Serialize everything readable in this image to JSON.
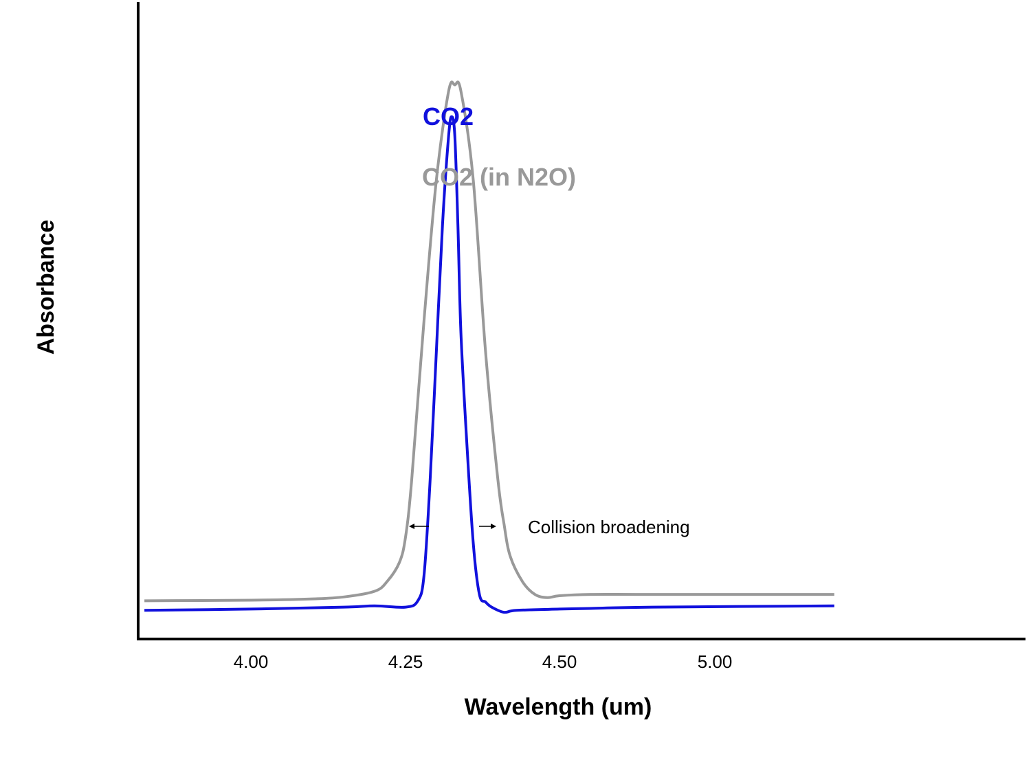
{
  "chart_data": {
    "type": "line",
    "title": "",
    "xlabel": "Wavelength (um)",
    "ylabel": "Absorbance",
    "xlim": [
      3.82,
      5.26
    ],
    "ylim": [
      0,
      1.0
    ],
    "x_ticks": [
      "4.00",
      "4.25",
      "4.50",
      "5.00"
    ],
    "grid": false,
    "legend_position": "top-center",
    "annotation": "Collision broadening",
    "series": [
      {
        "name": "CO2",
        "color": "#1111dd",
        "x": [
          3.83,
          4.0,
          4.15,
          4.2,
          4.25,
          4.27,
          4.28,
          4.29,
          4.3,
          4.31,
          4.32,
          4.325,
          4.33,
          4.335,
          4.34,
          4.35,
          4.36,
          4.37,
          4.38,
          4.39,
          4.41,
          4.43,
          4.5,
          4.6,
          4.8,
          5.1
        ],
        "y": [
          0.045,
          0.047,
          0.05,
          0.052,
          0.05,
          0.06,
          0.1,
          0.25,
          0.45,
          0.65,
          0.79,
          0.82,
          0.79,
          0.65,
          0.48,
          0.3,
          0.15,
          0.07,
          0.058,
          0.05,
          0.042,
          0.045,
          0.047,
          0.048,
          0.05,
          0.052
        ]
      },
      {
        "name": "CO2 (in N2O)",
        "color": "#999999",
        "x": [
          3.83,
          4.0,
          4.1,
          4.15,
          4.2,
          4.22,
          4.24,
          4.25,
          4.26,
          4.28,
          4.3,
          4.32,
          4.33,
          4.34,
          4.36,
          4.38,
          4.4,
          4.41,
          4.42,
          4.44,
          4.46,
          4.48,
          4.5,
          4.6,
          4.8,
          5.1
        ],
        "y": [
          0.06,
          0.061,
          0.063,
          0.066,
          0.075,
          0.09,
          0.12,
          0.16,
          0.25,
          0.5,
          0.72,
          0.86,
          0.87,
          0.86,
          0.72,
          0.45,
          0.25,
          0.18,
          0.13,
          0.09,
          0.07,
          0.065,
          0.068,
          0.07,
          0.07,
          0.07
        ]
      }
    ]
  }
}
